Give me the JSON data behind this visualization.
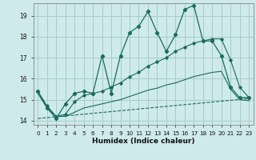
{
  "title": "",
  "xlabel": "Humidex (Indice chaleur)",
  "background_color": "#ceeaea",
  "grid_color": "#a8cccc",
  "line_color": "#1a6b60",
  "xlim": [
    -0.5,
    23.5
  ],
  "ylim": [
    13.8,
    19.6
  ],
  "yticks": [
    14,
    15,
    16,
    17,
    18,
    19
  ],
  "xticks": [
    0,
    1,
    2,
    3,
    4,
    5,
    6,
    7,
    8,
    9,
    10,
    11,
    12,
    13,
    14,
    15,
    16,
    17,
    18,
    19,
    20,
    21,
    22,
    23
  ],
  "line1_x": [
    0,
    1,
    2,
    3,
    4,
    5,
    6,
    7,
    8,
    9,
    10,
    11,
    12,
    13,
    14,
    15,
    16,
    17,
    18,
    19,
    20,
    21,
    22,
    23
  ],
  "line1_y": [
    15.4,
    14.6,
    14.1,
    14.8,
    15.3,
    15.4,
    15.3,
    17.1,
    15.3,
    17.1,
    18.2,
    18.5,
    19.2,
    18.2,
    17.3,
    18.1,
    19.3,
    19.5,
    17.8,
    17.8,
    17.1,
    15.6,
    15.1,
    15.1
  ],
  "line2_x": [
    0,
    1,
    2,
    3,
    4,
    5,
    6,
    7,
    8,
    9,
    10,
    11,
    12,
    13,
    14,
    15,
    16,
    17,
    18,
    19,
    20,
    21,
    22,
    23
  ],
  "line2_y": [
    15.4,
    14.7,
    14.2,
    14.3,
    14.9,
    15.2,
    15.3,
    15.4,
    15.6,
    15.8,
    16.1,
    16.3,
    16.6,
    16.8,
    17.0,
    17.3,
    17.5,
    17.7,
    17.8,
    17.9,
    17.9,
    16.9,
    15.6,
    15.1
  ],
  "line3_x": [
    0,
    1,
    2,
    3,
    4,
    5,
    6,
    7,
    8,
    9,
    10,
    11,
    12,
    13,
    14,
    15,
    16,
    17,
    18,
    19,
    20,
    21,
    22,
    23
  ],
  "line3_y": [
    15.3,
    14.6,
    14.2,
    14.2,
    14.4,
    14.6,
    14.7,
    14.8,
    14.9,
    15.0,
    15.15,
    15.3,
    15.45,
    15.55,
    15.7,
    15.8,
    15.95,
    16.1,
    16.2,
    16.3,
    16.35,
    15.5,
    15.0,
    14.95
  ],
  "line4_x": [
    0,
    23
  ],
  "line4_y": [
    14.1,
    15.05
  ]
}
